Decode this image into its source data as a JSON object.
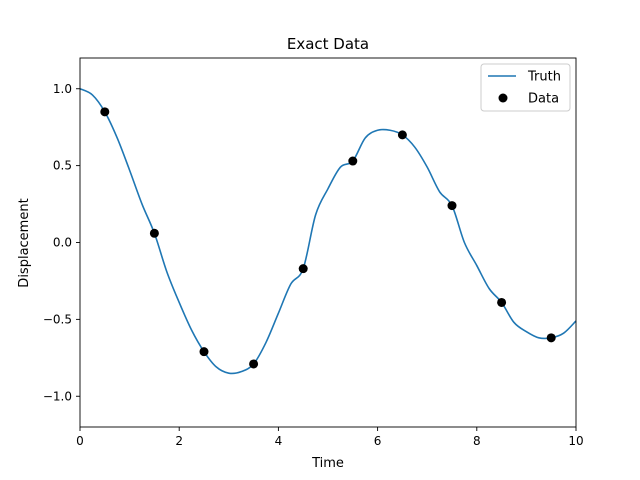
{
  "chart_data": {
    "type": "scatter",
    "title": "Exact Data",
    "xlabel": "Time",
    "ylabel": "Displacement",
    "xlim": [
      0,
      10
    ],
    "ylim": [
      -1.2,
      1.2
    ],
    "xticks": [
      0,
      2,
      4,
      6,
      8,
      10
    ],
    "xtick_labels": [
      "0",
      "2",
      "4",
      "6",
      "8",
      "10"
    ],
    "yticks": [
      -1.0,
      -0.5,
      0.0,
      0.5,
      1.0
    ],
    "ytick_labels": [
      "−1.0",
      "−0.5",
      "0.0",
      "0.5",
      "1.0"
    ],
    "grid": false,
    "legend_position": "top-right",
    "series": [
      {
        "name": "Truth",
        "kind": "line",
        "color": "#1f77b4",
        "x": [
          0.0,
          0.25,
          0.5,
          0.75,
          1.0,
          1.25,
          1.5,
          1.75,
          2.0,
          2.25,
          2.5,
          2.75,
          3.0,
          3.25,
          3.5,
          3.75,
          4.0,
          4.25,
          4.5,
          4.75,
          5.0,
          5.25,
          5.5,
          5.75,
          6.0,
          6.25,
          6.5,
          6.75,
          7.0,
          7.25,
          7.5,
          7.75,
          8.0,
          8.25,
          8.5,
          8.75,
          9.0,
          9.25,
          9.5,
          9.75,
          10.0
        ],
        "y": [
          1.0,
          0.96,
          0.85,
          0.68,
          0.47,
          0.25,
          0.06,
          -0.19,
          -0.39,
          -0.57,
          -0.71,
          -0.81,
          -0.85,
          -0.84,
          -0.79,
          -0.65,
          -0.46,
          -0.27,
          -0.17,
          0.18,
          0.35,
          0.49,
          0.53,
          0.68,
          0.73,
          0.73,
          0.7,
          0.62,
          0.49,
          0.33,
          0.24,
          0.0,
          -0.15,
          -0.3,
          -0.39,
          -0.52,
          -0.58,
          -0.62,
          -0.62,
          -0.59,
          -0.51
        ]
      },
      {
        "name": "Data",
        "kind": "scatter",
        "color": "#000000",
        "x": [
          0.5,
          1.5,
          2.5,
          3.5,
          4.5,
          5.5,
          6.5,
          7.5,
          8.5,
          9.5
        ],
        "y": [
          0.85,
          0.06,
          -0.71,
          -0.79,
          -0.17,
          0.53,
          0.7,
          0.24,
          -0.39,
          -0.62
        ]
      }
    ]
  }
}
